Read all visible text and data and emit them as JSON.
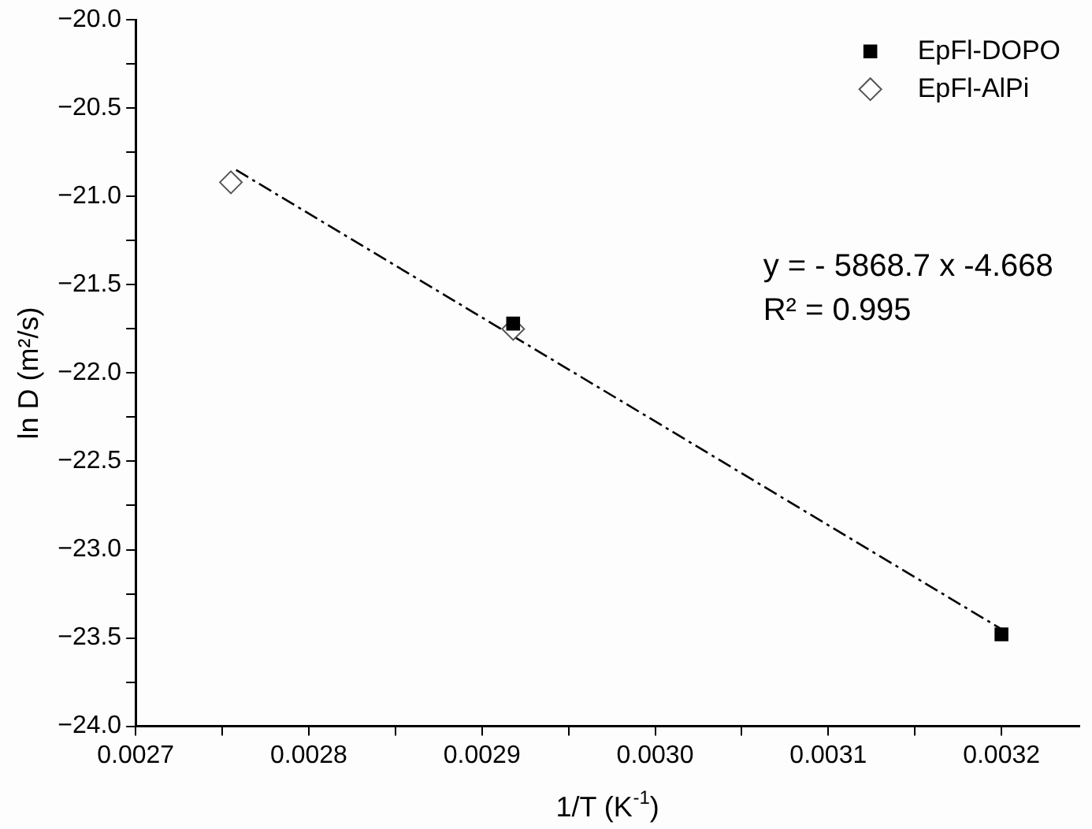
{
  "chart_data": {
    "type": "scatter",
    "xlabel": "1/T (K$^{-1}$)",
    "ylabel": "ln D (m²/s)",
    "xlim": [
      0.0027,
      0.003245
    ],
    "ylim": [
      -24,
      -20
    ],
    "xticks": [
      0.0027,
      {
        "value": 0.00275,
        "label": null
      },
      0.0028,
      {
        "value": 0.00285,
        "label": null
      },
      0.0029,
      {
        "value": 0.00295,
        "label": null
      },
      "0.0030",
      {
        "value": 0.00305,
        "label": null
      },
      0.0031,
      {
        "value": 0.00315,
        "label": null
      },
      0.0032
    ],
    "yticks": [
      {
        "value": -24,
        "label": "−24.0"
      },
      {
        "value": -23.75,
        "label": null
      },
      {
        "value": -23.5,
        "label": "−23.5"
      },
      {
        "value": -23.25,
        "label": null
      },
      {
        "value": -23,
        "label": "−23.0"
      },
      {
        "value": -22.75,
        "label": null
      },
      {
        "value": -22.5,
        "label": "−22.5"
      },
      {
        "value": -22.25,
        "label": null
      },
      {
        "value": -22,
        "label": "−22.0"
      },
      {
        "value": -21.75,
        "label": null
      },
      {
        "value": -21.5,
        "label": "−21.5"
      },
      {
        "value": -21.25,
        "label": null
      },
      {
        "value": -21,
        "label": "−21.0"
      },
      {
        "value": -20.75,
        "label": null
      },
      {
        "value": -20.5,
        "label": "−20.5"
      },
      {
        "value": -20.25,
        "label": null
      },
      {
        "value": -20,
        "label": "−20.0"
      }
    ],
    "series": [
      {
        "name": "EpFl-DOPO",
        "color": "#000000",
        "marker": "square",
        "x": [
          0.002918,
          0.0032
        ],
        "values": [
          -21.72,
          -23.48
        ]
      },
      {
        "name": "EpFl-AlPi",
        "color": "#555555",
        "marker": "diamond",
        "x": [
          0.002755,
          0.002918
        ],
        "values": [
          -20.92,
          -21.75
        ]
      },
      {
        "type": "line",
        "color": "#000000",
        "marker": "none",
        "line_style": "dashed",
        "x": [
          0.002758,
          0.0032
        ],
        "values": [
          -20.85,
          -23.45
        ]
      }
    ],
    "annotations": [
      "y = - 5868.7 x -4.668",
      "R² = 0.995"
    ],
    "legend": "top right",
    "grid": false
  }
}
